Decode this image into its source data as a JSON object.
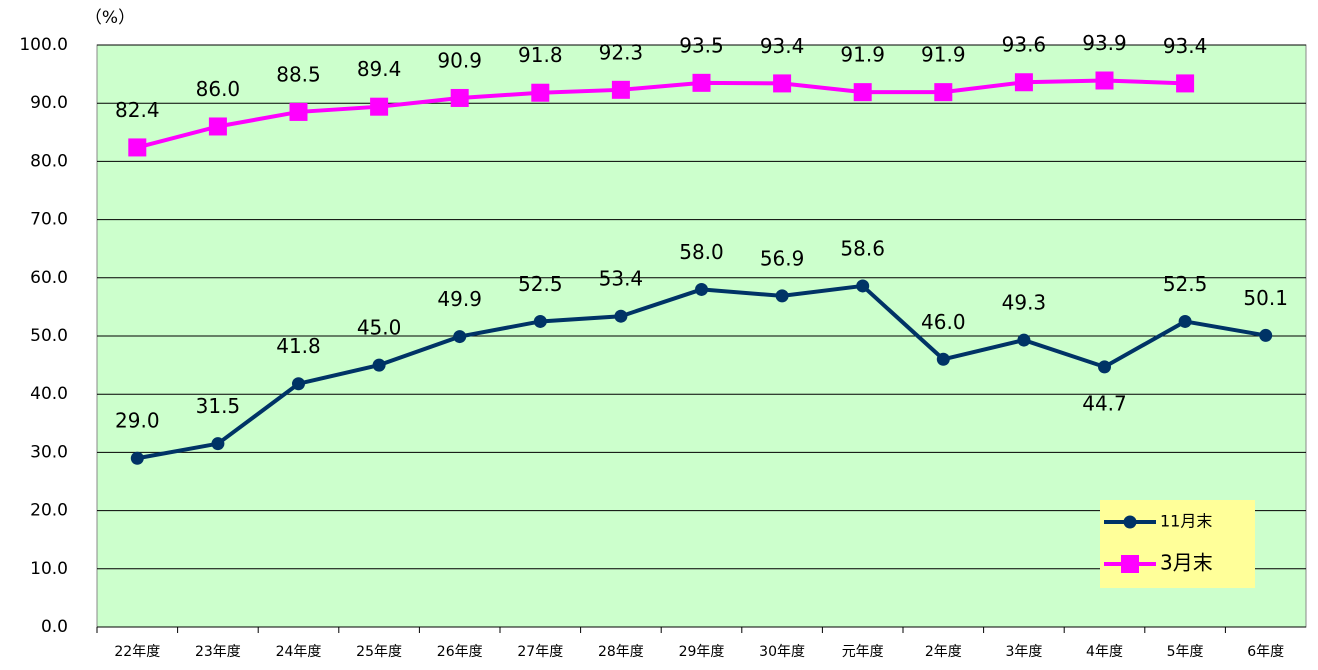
{
  "chart_data": {
    "type": "line",
    "y_label": "（%）",
    "categories": [
      "22年度",
      "23年度",
      "24年度",
      "25年度",
      "26年度",
      "27年度",
      "28年度",
      "29年度",
      "30年度",
      "元年度",
      "2年度",
      "3年度",
      "4年度",
      "5年度",
      "6年度"
    ],
    "series": [
      {
        "name": "11月末",
        "color": "#003366",
        "marker": "circle",
        "values": [
          29.0,
          31.5,
          41.8,
          45.0,
          49.9,
          52.5,
          53.4,
          58.0,
          56.9,
          58.6,
          46.0,
          49.3,
          44.7,
          52.5,
          50.1
        ],
        "value_labels": [
          "29.0",
          "31.5",
          "41.8",
          "45.0",
          "49.9",
          "52.5",
          "53.4",
          "58.0",
          "56.9",
          "58.6",
          "46.0",
          "49.3",
          "44.7",
          "52.5",
          "50.1"
        ]
      },
      {
        "name": "3月末",
        "color": "#ff00ff",
        "marker": "square",
        "values": [
          82.4,
          86.0,
          88.5,
          89.4,
          90.9,
          91.8,
          92.3,
          93.5,
          93.4,
          91.9,
          91.9,
          93.6,
          93.9,
          93.4,
          null
        ],
        "value_labels": [
          "82.4",
          "86.0",
          "88.5",
          "89.4",
          "90.9",
          "91.8",
          "92.3",
          "93.5",
          "93.4",
          "91.9",
          "91.9",
          "93.6",
          "93.9",
          "93.4",
          null
        ]
      }
    ],
    "ylim": [
      0,
      100
    ],
    "yticks": [
      {
        "value": 0,
        "label": "0.0"
      },
      {
        "value": 10,
        "label": "10.0"
      },
      {
        "value": 20,
        "label": "20.0"
      },
      {
        "value": 30,
        "label": "30.0"
      },
      {
        "value": 40,
        "label": "40.0"
      },
      {
        "value": 50,
        "label": "50.0"
      },
      {
        "value": 60,
        "label": "60.0"
      },
      {
        "value": 70,
        "label": "70.0"
      },
      {
        "value": 80,
        "label": "80.0"
      },
      {
        "value": 90,
        "label": "90.0"
      },
      {
        "value": 100,
        "label": "100.0"
      }
    ],
    "grid": true,
    "plot_background": "#ccffcc",
    "legend": "lower right",
    "legend_background": "#ffff99"
  }
}
